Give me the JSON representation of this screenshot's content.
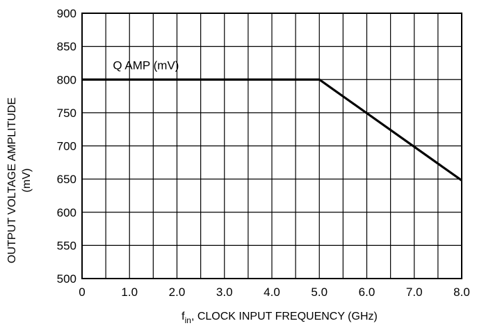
{
  "chart_data": {
    "type": "line",
    "title": "",
    "xlabel_main": "f",
    "xlabel_sub": "in",
    "xlabel_rest": ", CLOCK INPUT FREQUENCY (GHz)",
    "ylabel_line1": "OUTPUT VOLTAGE AMPLITUDE",
    "ylabel_line2": "(mV)",
    "xlim": [
      0,
      8
    ],
    "ylim": [
      500,
      900
    ],
    "grid": true,
    "x_grid_step": 0.5,
    "y_grid_step": 50,
    "x_ticks": [
      {
        "value": 0,
        "label": "0"
      },
      {
        "value": 1,
        "label": "1.0"
      },
      {
        "value": 2,
        "label": "2.0"
      },
      {
        "value": 3,
        "label": "3.0"
      },
      {
        "value": 4,
        "label": "4.0"
      },
      {
        "value": 5,
        "label": "5.0"
      },
      {
        "value": 6,
        "label": "6.0"
      },
      {
        "value": 7,
        "label": "7.0"
      },
      {
        "value": 8,
        "label": "8.0"
      }
    ],
    "y_ticks": [
      {
        "value": 500,
        "label": "500"
      },
      {
        "value": 550,
        "label": "550"
      },
      {
        "value": 600,
        "label": "600"
      },
      {
        "value": 650,
        "label": "650"
      },
      {
        "value": 700,
        "label": "700"
      },
      {
        "value": 750,
        "label": "750"
      },
      {
        "value": 800,
        "label": "800"
      },
      {
        "value": 850,
        "label": "850"
      },
      {
        "value": 900,
        "label": "900"
      }
    ],
    "series": [
      {
        "name": "Q AMP (mV)",
        "x": [
          0,
          5.0,
          8.0
        ],
        "y": [
          800,
          800,
          648
        ]
      }
    ],
    "annotations": [
      {
        "text": "Q AMP (mV)",
        "x": 0.65,
        "y": 822
      }
    ],
    "line_color": "#000000",
    "grid_color": "#000000"
  }
}
